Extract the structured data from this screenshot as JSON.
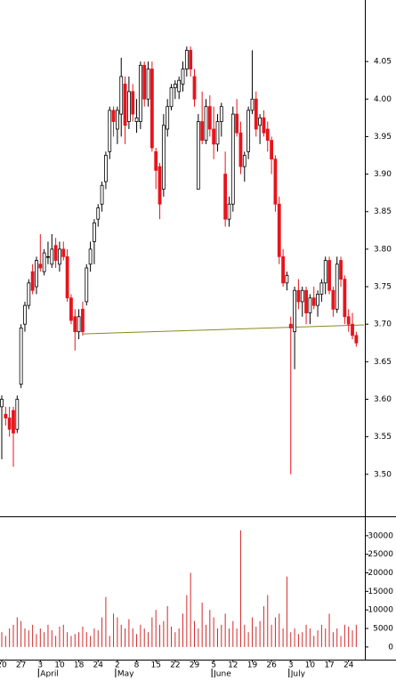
{
  "chart_data": {
    "type": "candlestick",
    "categories": [
      "20",
      null,
      null,
      null,
      null,
      "27",
      null,
      null,
      null,
      null,
      "3",
      null,
      null,
      null,
      null,
      "10",
      null,
      null,
      null,
      null,
      "18",
      null,
      null,
      null,
      null,
      "24",
      null,
      null,
      null,
      null,
      "2",
      null,
      null,
      null,
      null,
      "8",
      null,
      null,
      null,
      null,
      "15",
      null,
      null,
      null,
      null,
      "22",
      null,
      null,
      null,
      null,
      "29",
      null,
      null,
      null,
      null,
      "5",
      null,
      null,
      null,
      null,
      "12",
      null,
      null,
      null,
      null,
      "19",
      null,
      null,
      null,
      null,
      "26",
      null,
      null,
      null,
      null,
      "3",
      null,
      null,
      null,
      null,
      "10",
      null,
      null,
      null,
      null,
      "17",
      null,
      null,
      null,
      null,
      "24",
      null,
      null
    ],
    "month_labels": [
      "April",
      "May",
      "June",
      "July"
    ],
    "month_starts": [
      10,
      30,
      55,
      75
    ],
    "open": [
      3.59,
      3.58,
      3.575,
      3.585,
      3.56,
      3.62,
      3.7,
      3.725,
      3.77,
      3.75,
      3.78,
      3.77,
      3.79,
      3.78,
      3.805,
      3.78,
      3.8,
      3.79,
      3.735,
      3.71,
      3.69,
      3.72,
      3.73,
      3.78,
      3.81,
      3.84,
      3.86,
      3.89,
      3.93,
      3.985,
      3.96,
      3.98,
      4.02,
      3.97,
      4.01,
      3.97,
      3.97,
      4.045,
      4.0,
      4.04,
      3.93,
      3.91,
      3.88,
      3.96,
      3.99,
      4.015,
      4.01,
      4.02,
      4.04,
      4.065,
      4.03,
      3.88,
      3.97,
      3.945,
      3.99,
      3.96,
      3.94,
      3.97,
      3.9,
      3.84,
      3.86,
      3.98,
      3.955,
      3.91,
      3.93,
      3.985,
      4.0,
      3.965,
      3.975,
      3.96,
      3.945,
      3.92,
      3.86,
      3.79,
      3.755,
      3.7,
      3.69,
      3.745,
      3.73,
      3.745,
      3.715,
      3.735,
      3.725,
      3.74,
      3.755,
      3.785,
      3.745,
      3.72,
      3.785,
      3.76,
      3.71,
      3.7,
      3.685
    ],
    "high": [
      3.605,
      3.59,
      3.59,
      3.59,
      3.605,
      3.7,
      3.73,
      3.76,
      3.78,
      3.79,
      3.82,
      3.8,
      3.81,
      3.82,
      3.815,
      3.81,
      3.81,
      3.8,
      3.74,
      3.72,
      3.72,
      3.73,
      3.78,
      3.81,
      3.84,
      3.86,
      3.89,
      3.93,
      3.99,
      3.99,
      3.99,
      4.055,
      4.03,
      4.03,
      4.02,
      4.0,
      4.05,
      4.05,
      4.05,
      4.05,
      3.935,
      3.915,
      3.98,
      4.0,
      4.02,
      4.025,
      4.03,
      4.05,
      4.07,
      4.07,
      4.04,
      3.98,
      4.01,
      4.0,
      4.005,
      3.99,
      3.98,
      3.995,
      3.93,
      3.87,
      3.99,
      4.0,
      3.97,
      3.93,
      3.99,
      4.065,
      4.01,
      3.98,
      3.985,
      3.97,
      3.95,
      3.925,
      3.87,
      3.8,
      3.77,
      3.71,
      3.75,
      3.76,
      3.75,
      3.75,
      3.74,
      3.75,
      3.745,
      3.76,
      3.79,
      3.79,
      3.75,
      3.79,
      3.79,
      3.765,
      3.72,
      3.715,
      3.69
    ],
    "low": [
      3.52,
      3.565,
      3.55,
      3.51,
      3.555,
      3.615,
      3.69,
      3.72,
      3.74,
      3.74,
      3.77,
      3.765,
      3.78,
      3.775,
      3.775,
      3.77,
      3.785,
      3.73,
      3.7,
      3.665,
      3.68,
      3.685,
      3.725,
      3.77,
      3.78,
      3.83,
      3.85,
      3.88,
      3.92,
      3.95,
      3.94,
      3.95,
      3.94,
      3.96,
      3.97,
      3.955,
      3.96,
      3.99,
      3.99,
      3.93,
      3.88,
      3.84,
      3.87,
      3.95,
      3.985,
      4.0,
      4.0,
      4.01,
      4.03,
      4.03,
      3.99,
      3.88,
      3.94,
      3.94,
      3.95,
      3.92,
      3.93,
      3.95,
      3.83,
      3.83,
      3.85,
      3.95,
      3.9,
      3.89,
      3.92,
      3.98,
      3.95,
      3.94,
      3.95,
      3.93,
      3.9,
      3.85,
      3.78,
      3.75,
      3.745,
      3.5,
      3.64,
      3.72,
      3.71,
      3.7,
      3.7,
      3.72,
      3.71,
      3.73,
      3.74,
      3.74,
      3.71,
      3.715,
      3.75,
      3.7,
      3.69,
      3.68,
      3.67
    ],
    "close": [
      3.6,
      3.575,
      3.56,
      3.555,
      3.6,
      3.695,
      3.725,
      3.755,
      3.745,
      3.785,
      3.775,
      3.795,
      3.79,
      3.8,
      3.785,
      3.8,
      3.79,
      3.735,
      3.705,
      3.69,
      3.71,
      3.69,
      3.775,
      3.8,
      3.835,
      3.855,
      3.885,
      3.925,
      3.985,
      3.97,
      3.985,
      4.03,
      3.965,
      4.01,
      3.98,
      3.975,
      4.045,
      4.0,
      4.04,
      3.935,
      3.905,
      3.86,
      3.965,
      3.99,
      4.015,
      4.02,
      4.025,
      4.04,
      4.065,
      4.04,
      4.0,
      3.97,
      3.945,
      3.99,
      3.96,
      3.94,
      3.97,
      3.99,
      3.84,
      3.86,
      3.98,
      3.955,
      3.91,
      3.925,
      3.985,
      4.0,
      3.96,
      3.975,
      3.955,
      3.945,
      3.92,
      3.86,
      3.79,
      3.755,
      3.765,
      3.695,
      3.745,
      3.73,
      3.745,
      3.715,
      3.735,
      3.725,
      3.74,
      3.755,
      3.785,
      3.745,
      3.72,
      3.78,
      3.76,
      3.71,
      3.7,
      3.685,
      3.675
    ],
    "up_color": "#ffffff",
    "down_color": "#e8141c",
    "ylim": [
      3.444,
      4.132
    ],
    "yticks": [
      {
        "value": 3.5,
        "label": "3.50"
      },
      3.55,
      {
        "value": 3.6,
        "label": "3.60"
      },
      3.65,
      {
        "value": 3.7,
        "label": "3.70"
      },
      3.75,
      {
        "value": 3.8,
        "label": "3.80"
      },
      3.85,
      {
        "value": 3.9,
        "label": "3.90"
      },
      3.95,
      {
        "value": 4,
        "label": "4.00"
      },
      4.05
    ],
    "trend_line": {
      "from_index": 21,
      "from_value": 3.687,
      "to_index": 94,
      "to_value": 3.699,
      "color": "#8a8a1e"
    },
    "volume": {
      "values": [
        4000,
        3000,
        5000,
        6000,
        8000,
        7000,
        5000,
        4500,
        6000,
        3500,
        5000,
        4000,
        6000,
        4500,
        3000,
        5500,
        6000,
        4000,
        3000,
        3500,
        4000,
        5500,
        4000,
        3000,
        5000,
        4500,
        8000,
        13500,
        3000,
        9000,
        8000,
        6000,
        5000,
        7500,
        5000,
        3500,
        6000,
        5000,
        4000,
        8000,
        10000,
        6000,
        7000,
        11000,
        5500,
        4000,
        5000,
        9000,
        14000,
        20000,
        7000,
        5000,
        12000,
        6000,
        10000,
        8000,
        5000,
        6000,
        9000,
        5000,
        7000,
        5000,
        31500,
        6000,
        4000,
        8000,
        5500,
        7000,
        11000,
        14000,
        6000,
        8000,
        9000,
        5000,
        19000,
        4000,
        5000,
        3500,
        4000,
        6000,
        5000,
        3000,
        4500,
        6000,
        5000,
        9000,
        4000,
        5000,
        3000,
        6000,
        5500,
        4500,
        6000
      ],
      "color": "#d22a2a",
      "ylim": [
        -3400,
        35000
      ],
      "yticks": [
        0,
        5000,
        10000,
        15000,
        20000,
        25000,
        30000
      ]
    }
  }
}
